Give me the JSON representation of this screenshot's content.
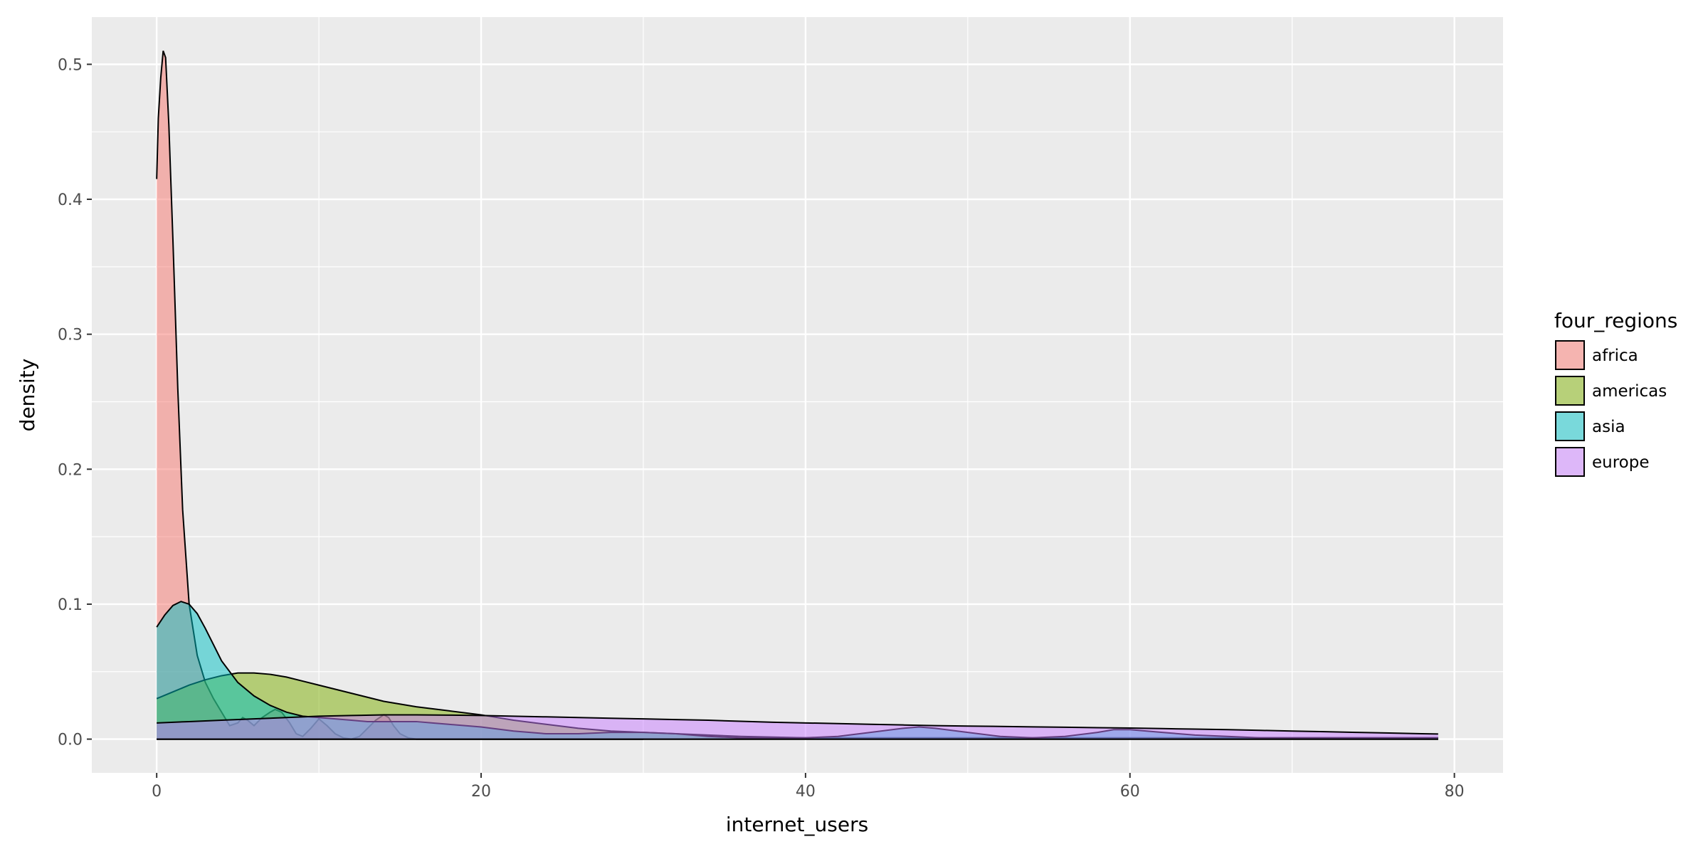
{
  "chart_data": {
    "type": "area",
    "xlabel": "internet_users",
    "ylabel": "density",
    "xlim": [
      -4,
      83
    ],
    "ylim": [
      -0.025,
      0.535
    ],
    "x_ticks": [
      0,
      20,
      40,
      60,
      80
    ],
    "x_tick_labels": [
      "0",
      "20",
      "40",
      "60",
      "80"
    ],
    "y_ticks": [
      0.0,
      0.1,
      0.2,
      0.3,
      0.4,
      0.5
    ],
    "y_tick_labels": [
      "0.0",
      "0.1",
      "0.2",
      "0.3",
      "0.4",
      "0.5"
    ],
    "grid": true,
    "legend": {
      "title": "four_regions",
      "position": "right"
    },
    "series": [
      {
        "name": "africa",
        "color": "#F8766D",
        "x": [
          0,
          0.1,
          0.25,
          0.4,
          0.55,
          0.75,
          1.0,
          1.3,
          1.6,
          2.0,
          2.5,
          3.0,
          3.5,
          4.0,
          4.5,
          5.0,
          5.3,
          5.6,
          6.0,
          6.5,
          7.0,
          7.3,
          7.7,
          8.2,
          8.6,
          9.0,
          9.5,
          10.0,
          10.5,
          11.0,
          11.5,
          12.0,
          12.5,
          13.0,
          13.5,
          14.0,
          14.3,
          14.6,
          15.0,
          15.5,
          16.0,
          17.0,
          18.0,
          19.0,
          20.0,
          22.0,
          24.0,
          26.0,
          28.0,
          30.0
        ],
        "y": [
          0.415,
          0.46,
          0.49,
          0.51,
          0.505,
          0.455,
          0.37,
          0.26,
          0.17,
          0.1,
          0.062,
          0.042,
          0.03,
          0.02,
          0.01,
          0.012,
          0.016,
          0.014,
          0.01,
          0.016,
          0.02,
          0.022,
          0.02,
          0.012,
          0.004,
          0.002,
          0.008,
          0.015,
          0.01,
          0.004,
          0.001,
          0.0,
          0.002,
          0.008,
          0.014,
          0.018,
          0.016,
          0.01,
          0.004,
          0.001,
          0.0,
          0.0,
          0.0,
          0.0,
          0.0,
          0.0,
          0.0,
          0.0,
          0.0,
          0.0
        ]
      },
      {
        "name": "americas",
        "color": "#7CAE00",
        "x": [
          0,
          1,
          2,
          3,
          4,
          5,
          6,
          7,
          8,
          9,
          10,
          12,
          14,
          16,
          18,
          20,
          22,
          24,
          26,
          28,
          30,
          32,
          34,
          36,
          38,
          40,
          42,
          44,
          46,
          48,
          50,
          52,
          54,
          56,
          58,
          60,
          62,
          64,
          66,
          68,
          70,
          72,
          74,
          76,
          78,
          79
        ],
        "y": [
          0.03,
          0.035,
          0.04,
          0.044,
          0.047,
          0.049,
          0.049,
          0.048,
          0.046,
          0.043,
          0.04,
          0.034,
          0.028,
          0.024,
          0.021,
          0.018,
          0.014,
          0.011,
          0.008,
          0.006,
          0.005,
          0.004,
          0.003,
          0.002,
          0.0015,
          0.001,
          0.001,
          0.001,
          0.001,
          0.001,
          0.001,
          0.001,
          0.001,
          0.001,
          0.001,
          0.001,
          0.001,
          0.001,
          0.001,
          0.001,
          0.001,
          0.001,
          0.001,
          0.001,
          0.001,
          0.001
        ]
      },
      {
        "name": "asia",
        "color": "#00BFC4",
        "x": [
          0,
          0.5,
          1.0,
          1.5,
          2.0,
          2.5,
          3.0,
          3.5,
          4.0,
          5.0,
          6.0,
          7.0,
          8.0,
          9.0,
          10.0,
          11.0,
          12.0,
          13.0,
          14.0,
          15.0,
          16.0,
          17.0,
          18.0,
          19.0,
          20.0,
          22.0,
          24.0,
          26.0,
          28.0,
          30.0,
          32.0,
          34.0,
          36.0,
          38.0,
          40.0,
          42.0,
          44.0,
          46.0,
          47.0,
          48.0,
          50.0,
          52.0,
          54.0,
          56.0,
          58.0,
          59.0,
          60.0,
          62.0,
          64.0,
          66.0,
          68.0,
          70.0,
          72.0,
          74.0,
          76.0,
          78.0,
          79.0
        ],
        "y": [
          0.083,
          0.092,
          0.099,
          0.102,
          0.1,
          0.093,
          0.082,
          0.07,
          0.058,
          0.042,
          0.032,
          0.025,
          0.02,
          0.017,
          0.016,
          0.015,
          0.014,
          0.013,
          0.013,
          0.013,
          0.013,
          0.012,
          0.011,
          0.01,
          0.009,
          0.006,
          0.004,
          0.004,
          0.005,
          0.005,
          0.004,
          0.002,
          0.001,
          0.001,
          0.001,
          0.002,
          0.005,
          0.008,
          0.009,
          0.008,
          0.005,
          0.002,
          0.001,
          0.002,
          0.005,
          0.007,
          0.007,
          0.005,
          0.003,
          0.002,
          0.001,
          0.001,
          0.001,
          0.001,
          0.001,
          0.001,
          0.001
        ]
      },
      {
        "name": "europe",
        "color": "#C77CFF",
        "x": [
          0,
          2,
          4,
          6,
          8,
          10,
          12,
          14,
          16,
          18,
          20,
          22,
          24,
          26,
          28,
          30,
          32,
          34,
          36,
          38,
          40,
          42,
          44,
          46,
          48,
          50,
          52,
          54,
          56,
          58,
          60,
          62,
          64,
          66,
          68,
          70,
          72,
          74,
          76,
          78,
          79
        ],
        "y": [
          0.012,
          0.013,
          0.014,
          0.015,
          0.016,
          0.017,
          0.0175,
          0.018,
          0.018,
          0.0178,
          0.0175,
          0.017,
          0.0165,
          0.016,
          0.0155,
          0.015,
          0.0145,
          0.014,
          0.0132,
          0.0125,
          0.012,
          0.0115,
          0.011,
          0.0105,
          0.01,
          0.0097,
          0.0094,
          0.0091,
          0.0088,
          0.0085,
          0.0082,
          0.0078,
          0.0074,
          0.007,
          0.0065,
          0.006,
          0.0055,
          0.005,
          0.0045,
          0.004,
          0.0038
        ]
      }
    ]
  }
}
